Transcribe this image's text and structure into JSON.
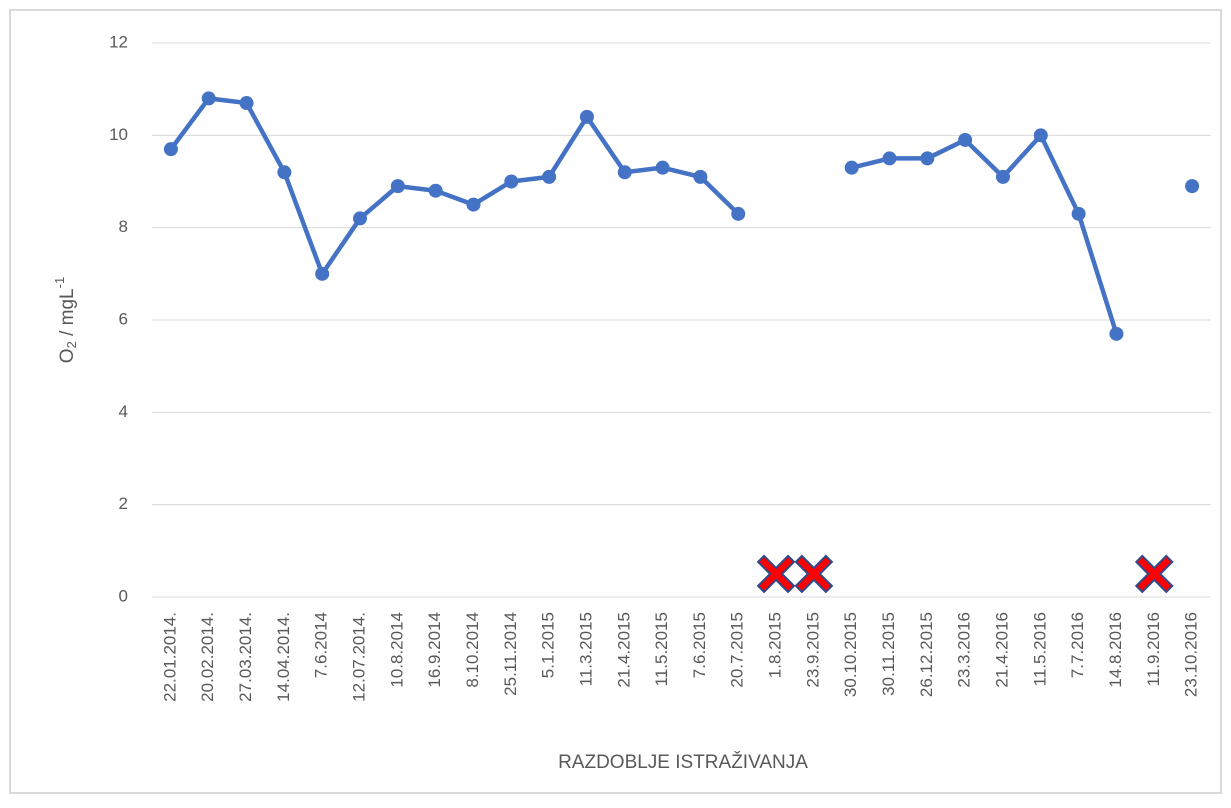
{
  "chart_data": {
    "type": "line",
    "ylabel": {
      "base": "O",
      "sub": "2",
      "rest": " / mgL",
      "sup": "-1"
    },
    "xlabel": "RAZDOBLJE ISTRAŽIVANJA",
    "categories": [
      "22.01.2014.",
      "20.02.2014.",
      "27.03.2014.",
      "14.04.2014.",
      "7.6.2014",
      "12.07.2014.",
      "10.8.2014",
      "16.9.2014",
      "8.10.2014",
      "25.11.2014",
      "5.1.2015",
      "11.3.2015",
      "21.4.2015",
      "11.5.2015",
      "7.6.2015",
      "20.7.2015",
      "1.8.2015",
      "23.9.2015",
      "30.10.2015",
      "30.11.2015",
      "26.12.2015",
      "23.3.2016",
      "21.4.2016",
      "11.5.2016",
      "7.7.2016",
      "14.8.2016",
      "11.9.2016",
      "23.10.2016"
    ],
    "series": [
      {
        "color": "#4472c4",
        "marker": "circle",
        "values": [
          9.7,
          10.8,
          10.7,
          9.2,
          7.0,
          8.2,
          8.9,
          8.8,
          8.5,
          9.0,
          9.1,
          10.4,
          9.2,
          9.3,
          9.1,
          8.3,
          null,
          null,
          9.3,
          9.5,
          9.5,
          9.9,
          9.1,
          10.0,
          8.3,
          5.7,
          null,
          8.9
        ]
      },
      {
        "color": "#ff0000",
        "marker": "x",
        "values": [
          null,
          null,
          null,
          null,
          null,
          null,
          null,
          null,
          null,
          null,
          null,
          null,
          null,
          null,
          null,
          null,
          0.5,
          0.5,
          null,
          null,
          null,
          null,
          null,
          null,
          null,
          null,
          0.5,
          null
        ]
      }
    ],
    "ylim": [
      0,
      12
    ],
    "yticks": [
      0,
      2,
      4,
      6,
      8,
      10,
      12
    ],
    "grid": true
  }
}
